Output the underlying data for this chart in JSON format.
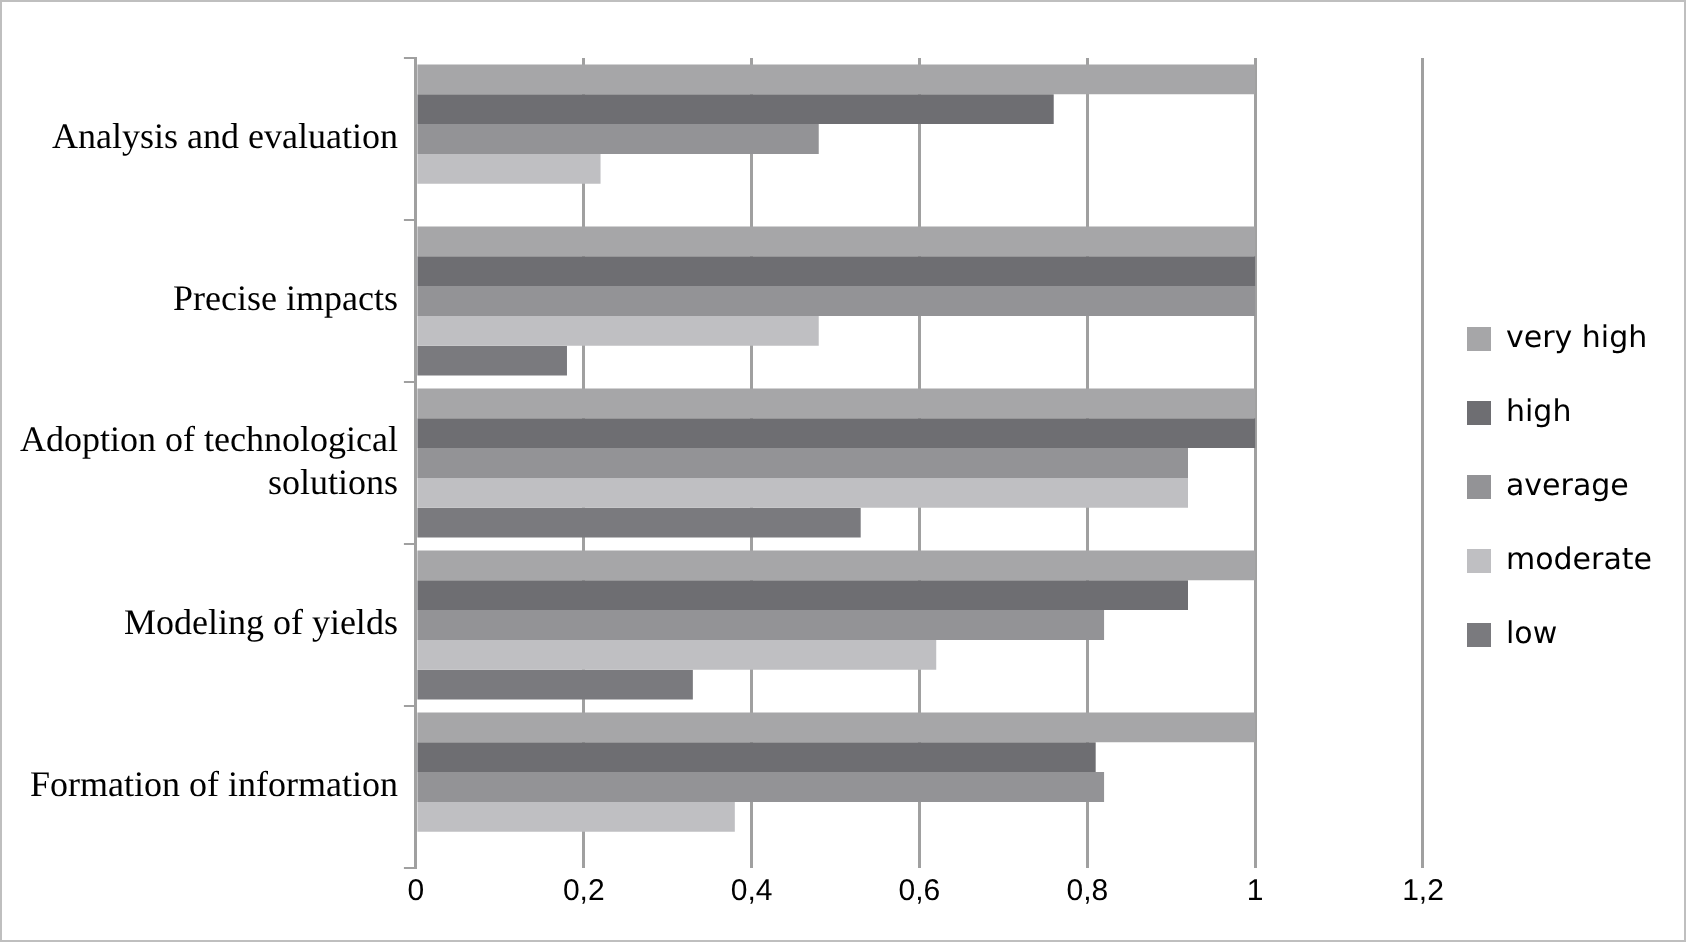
{
  "chart_data": {
    "type": "bar",
    "orientation": "horizontal",
    "categories": [
      "Analysis and evaluation",
      "Precise impacts",
      "Adoption of technological solutions",
      "Modeling of yields",
      "Formation of information"
    ],
    "series": [
      {
        "name": "very high",
        "color": "#a6a6a8",
        "values": [
          1,
          1,
          1,
          1,
          1
        ]
      },
      {
        "name": "high",
        "color": "#6e6e72",
        "values": [
          0.76,
          1,
          1,
          0.92,
          0.81
        ]
      },
      {
        "name": "average",
        "color": "#939396",
        "values": [
          0.48,
          1,
          0.92,
          0.82,
          0.82
        ]
      },
      {
        "name": "moderate",
        "color": "#bfbfc2",
        "values": [
          0.22,
          0.48,
          0.92,
          0.62,
          0.38
        ]
      },
      {
        "name": "low",
        "color": "#7a7a7e",
        "values": [
          null,
          0.18,
          0.53,
          0.33,
          null
        ]
      }
    ],
    "xlim": [
      0,
      1.2
    ],
    "xticks": [
      {
        "value": 0,
        "label": "0"
      },
      {
        "value": 0.2,
        "label": "0,2"
      },
      {
        "value": 0.4,
        "label": "0,4"
      },
      {
        "value": 0.6,
        "label": "0,6"
      },
      {
        "value": 0.8,
        "label": "0,8"
      },
      {
        "value": 1,
        "label": "1"
      },
      {
        "value": 1.2,
        "label": "1,2"
      }
    ],
    "grid": "x",
    "legend": "right"
  }
}
